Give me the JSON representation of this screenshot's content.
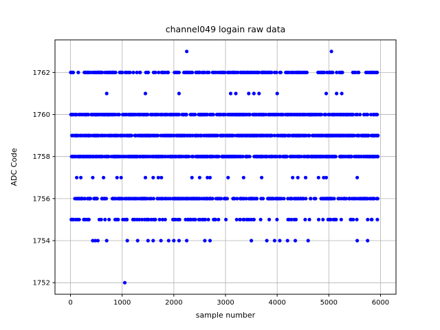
{
  "chart_data": {
    "type": "scatter",
    "title": "channel049 logain raw data",
    "xlabel": "sample number",
    "ylabel": "ADC Code",
    "xlim": [
      -300,
      6300
    ],
    "ylim": [
      1751.45,
      1763.55
    ],
    "xticks": [
      0,
      1000,
      2000,
      3000,
      4000,
      5000,
      6000
    ],
    "yticks": [
      1752,
      1754,
      1756,
      1758,
      1760,
      1762
    ],
    "grid": true,
    "background": "#ffffff",
    "marker_color": "#0000ff",
    "grid_color": "#b0b0b0",
    "axis_color": "#000000",
    "marker_radius": 2.6,
    "series": [
      {
        "y": 1763,
        "x": [
          2250,
          5050
        ]
      },
      {
        "y": 1762,
        "random": {
          "count": 230,
          "min": 0,
          "max": 5950,
          "seed": 11
        }
      },
      {
        "y": 1761,
        "x": [
          700,
          1450,
          2100,
          3100,
          3200,
          3450,
          3550,
          3650,
          4000,
          4950,
          5150,
          5250
        ]
      },
      {
        "y": 1760,
        "random": {
          "count": 380,
          "min": 0,
          "max": 5950,
          "seed": 22
        }
      },
      {
        "y": 1759,
        "random": {
          "count": 520,
          "min": 0,
          "max": 5950,
          "seed": 33
        }
      },
      {
        "y": 1758,
        "random": {
          "count": 540,
          "min": 0,
          "max": 5950,
          "seed": 44
        }
      },
      {
        "y": 1757,
        "x": [
          120,
          200,
          430,
          640,
          900,
          980,
          1450,
          1600,
          1700,
          1760,
          2350,
          2500,
          2650,
          2700,
          3050,
          3350,
          3700,
          4300,
          4400,
          4550,
          4800,
          4900,
          4950,
          5550
        ]
      },
      {
        "y": 1756,
        "random": {
          "count": 270,
          "min": 0,
          "max": 5950,
          "seed": 55
        }
      },
      {
        "y": 1755,
        "random": {
          "count": 115,
          "min": 0,
          "max": 5950,
          "seed": 66
        }
      },
      {
        "y": 1754,
        "x": [
          430,
          480,
          530,
          700,
          1100,
          1300,
          1500,
          1600,
          1750,
          1900,
          2000,
          2100,
          2250,
          2600,
          2700,
          3500,
          3800,
          3950,
          4050,
          4200,
          4350,
          4600,
          5550,
          5750
        ]
      },
      {
        "y": 1752,
        "x": [
          1050
        ]
      }
    ]
  }
}
